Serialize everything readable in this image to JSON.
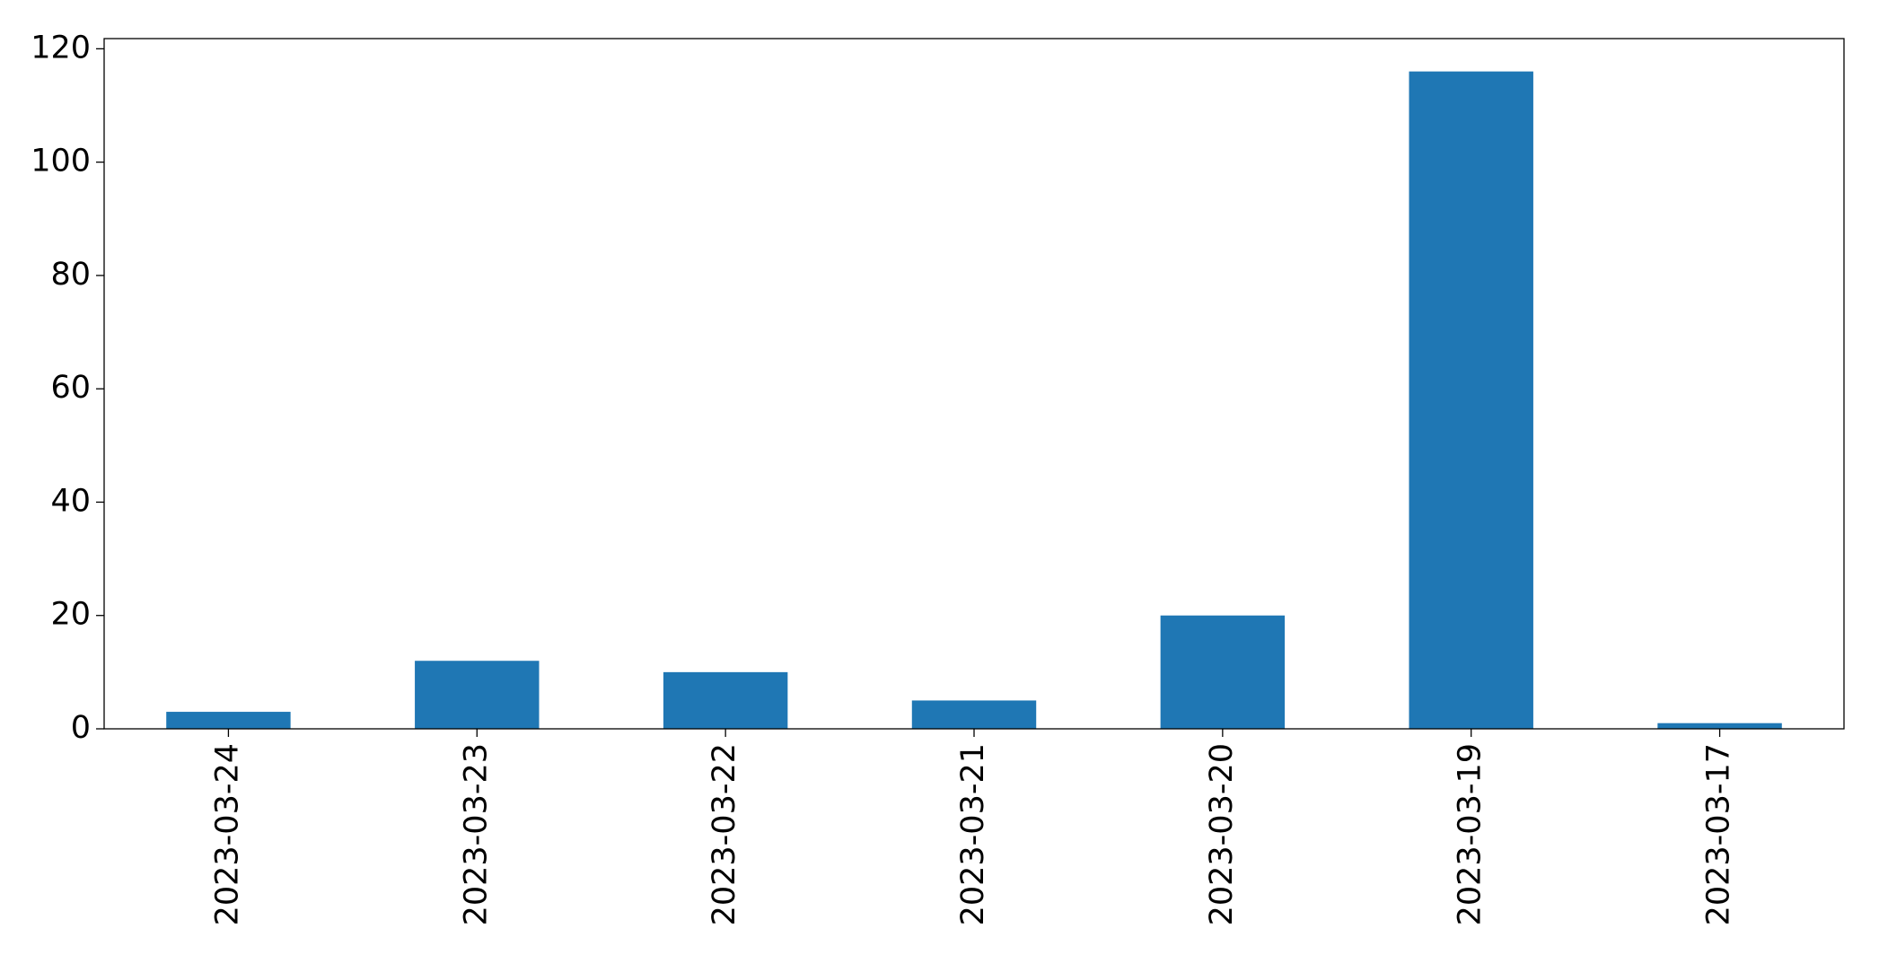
{
  "chart_data": {
    "type": "bar",
    "categories": [
      "2023-03-24",
      "2023-03-23",
      "2023-03-22",
      "2023-03-21",
      "2023-03-20",
      "2023-03-19",
      "2023-03-17"
    ],
    "values": [
      3,
      12,
      10,
      5,
      20,
      116,
      1
    ],
    "color": "#1f77b4",
    "ylim": [
      0,
      121.8
    ],
    "yticks": [
      0,
      20,
      40,
      60,
      80,
      100,
      120
    ],
    "grid": false
  }
}
